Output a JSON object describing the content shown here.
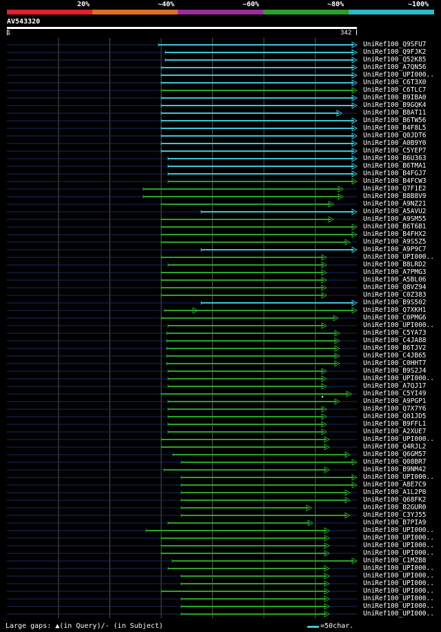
{
  "legend": {
    "percent_labels": [
      "20%",
      "~40%",
      "~60%",
      "~80%",
      "~100%"
    ],
    "colors": [
      "#e0202c",
      "#e07020",
      "#9a2e9a",
      "#2aa02a",
      "#30b8c8"
    ]
  },
  "query": {
    "id": "AV543320",
    "start": "1",
    "end": "342"
  },
  "colors": {
    "cyan": "#3cc8dc",
    "green": "#28a828",
    "grid": "#555555",
    "fade": "#1a2a66"
  },
  "hits": [
    {
      "label": "UniRef100_Q9SFU7",
      "start": 0.4333,
      "end": 1.0,
      "color": "cyan"
    },
    {
      "label": "UniRef100_Q9FJK2",
      "start": 0.4528,
      "end": 1.0,
      "color": "cyan"
    },
    {
      "label": "UniRef100_Q52K85",
      "start": 0.4528,
      "end": 1.0,
      "color": "cyan"
    },
    {
      "label": "UniRef100_A7QN56",
      "start": 0.4409,
      "end": 1.0,
      "color": "cyan"
    },
    {
      "label": "UniRef100_UPI000..",
      "start": 0.4409,
      "end": 1.0,
      "color": "cyan"
    },
    {
      "label": "UniRef100_C6T3X0",
      "start": 0.4409,
      "end": 1.0,
      "color": "cyan"
    },
    {
      "label": "UniRef100_C6TLC7",
      "start": 0.4409,
      "end": 1.0,
      "color": "green"
    },
    {
      "label": "UniRef100_B9IBA0",
      "start": 0.4409,
      "end": 1.0,
      "color": "cyan"
    },
    {
      "label": "UniRef100_B9GQK4",
      "start": 0.4409,
      "end": 1.0,
      "color": "cyan"
    },
    {
      "label": "UniRef100_B8AT11",
      "start": 0.4409,
      "end": 0.9567,
      "color": "cyan"
    },
    {
      "label": "UniRef100_B6TW56",
      "start": 0.4409,
      "end": 1.0,
      "color": "cyan"
    },
    {
      "label": "UniRef100_B4F8L5",
      "start": 0.4409,
      "end": 1.0,
      "color": "cyan"
    },
    {
      "label": "UniRef100_Q0JDT6",
      "start": 0.4409,
      "end": 1.0,
      "color": "cyan"
    },
    {
      "label": "UniRef100_A0B9Y0",
      "start": 0.4409,
      "end": 1.0,
      "color": "cyan"
    },
    {
      "label": "UniRef100_C5YEP7",
      "start": 0.4409,
      "end": 1.0,
      "color": "cyan"
    },
    {
      "label": "UniRef100_B6U363",
      "start": 0.4606,
      "end": 1.0,
      "color": "cyan"
    },
    {
      "label": "UniRef100_B6TMA1",
      "start": 0.4606,
      "end": 1.0,
      "color": "cyan"
    },
    {
      "label": "UniRef100_B4FGJ7",
      "start": 0.4606,
      "end": 1.0,
      "color": "cyan"
    },
    {
      "label": "UniRef100_B4FCW3",
      "start": 0.4606,
      "end": 1.0,
      "color": "green"
    },
    {
      "label": "UniRef100_Q7F1E2",
      "start": 0.3898,
      "end": 0.9606,
      "color": "green"
    },
    {
      "label": "UniRef100_B8B8V9",
      "start": 0.3898,
      "end": 0.9606,
      "color": "green"
    },
    {
      "label": "UniRef100_A9NZ21",
      "start": 0.4409,
      "end": 0.9331,
      "color": "green"
    },
    {
      "label": "UniRef100_A5AVU2",
      "start": 0.5551,
      "end": 1.0,
      "color": "cyan"
    },
    {
      "label": "UniRef100_A9SM55",
      "start": 0.4409,
      "end": 0.9331,
      "color": "green"
    },
    {
      "label": "UniRef100_B6T6B1",
      "start": 0.4409,
      "end": 1.0,
      "color": "green"
    },
    {
      "label": "UniRef100_B4FHX2",
      "start": 0.4409,
      "end": 1.0,
      "color": "green"
    },
    {
      "label": "UniRef100_A9S5Z5",
      "start": 0.4409,
      "end": 0.9803,
      "color": "green"
    },
    {
      "label": "UniRef100_A9P9C7",
      "start": 0.5551,
      "end": 1.0,
      "color": "cyan"
    },
    {
      "label": "UniRef100_UPI000..",
      "start": 0.4409,
      "end": 0.9134,
      "color": "green"
    },
    {
      "label": "UniRef100_B8LRD2",
      "start": 0.4606,
      "end": 0.9134,
      "color": "green"
    },
    {
      "label": "UniRef100_A7PMG3",
      "start": 0.4409,
      "end": 0.9134,
      "color": "green"
    },
    {
      "label": "UniRef100_A5BL06",
      "start": 0.4409,
      "end": 0.9134,
      "color": "green"
    },
    {
      "label": "UniRef100_Q8VZ94",
      "start": 0.4409,
      "end": 0.9134,
      "color": "green"
    },
    {
      "label": "UniRef100_C0Z383",
      "start": 0.4409,
      "end": 0.9134,
      "color": "green"
    },
    {
      "label": "UniRef100_B9S502",
      "start": 0.5551,
      "end": 1.0,
      "color": "cyan"
    },
    {
      "label": "UniRef100_Q7XKH1",
      "start": 0.4508,
      "end": 1.0,
      "color": "green",
      "gap": 0.5453
    },
    {
      "label": "UniRef100_C0PMG6",
      "start": 0.4409,
      "end": 0.9469,
      "color": "green"
    },
    {
      "label": "UniRef100_UPI000..",
      "start": 0.4606,
      "end": 0.9134,
      "color": "green"
    },
    {
      "label": "UniRef100_C5YA73",
      "start": 0.4567,
      "end": 0.9508,
      "color": "green"
    },
    {
      "label": "UniRef100_C4JA88",
      "start": 0.4567,
      "end": 0.9508,
      "color": "green"
    },
    {
      "label": "UniRef100_B6TJV2",
      "start": 0.4567,
      "end": 0.9508,
      "color": "green"
    },
    {
      "label": "UniRef100_C4JB65",
      "start": 0.4567,
      "end": 0.9508,
      "color": "green"
    },
    {
      "label": "UniRef100_C0HHT7",
      "start": 0.4567,
      "end": 0.9508,
      "color": "green"
    },
    {
      "label": "UniRef100_B9S2J4",
      "start": 0.4606,
      "end": 0.9134,
      "color": "green"
    },
    {
      "label": "UniRef100_UPI000..",
      "start": 0.4606,
      "end": 0.9134,
      "color": "green"
    },
    {
      "label": "UniRef100_A7QJ17",
      "start": 0.4606,
      "end": 0.9134,
      "color": "green"
    },
    {
      "label": "UniRef100_C5YI49",
      "start": 0.4409,
      "end": 0.9843,
      "color": "green",
      "query_gap": 0.9016
    },
    {
      "label": "UniRef100_A9PGP1",
      "start": 0.4606,
      "end": 0.9508,
      "color": "green"
    },
    {
      "label": "UniRef100_Q7X7Y6",
      "start": 0.4606,
      "end": 0.9134,
      "color": "green"
    },
    {
      "label": "UniRef100_Q01JD5",
      "start": 0.4606,
      "end": 0.9134,
      "color": "green"
    },
    {
      "label": "UniRef100_B9FFL1",
      "start": 0.4606,
      "end": 0.9134,
      "color": "green"
    },
    {
      "label": "UniRef100_A2XUE7",
      "start": 0.4606,
      "end": 0.9134,
      "color": "green"
    },
    {
      "label": "UniRef100_UPI000..",
      "start": 0.4409,
      "end": 0.9213,
      "color": "green"
    },
    {
      "label": "UniRef100_Q4RJL2",
      "start": 0.4409,
      "end": 0.9213,
      "color": "green"
    },
    {
      "label": "UniRef100_Q6GM57",
      "start": 0.4744,
      "end": 0.9803,
      "color": "green"
    },
    {
      "label": "UniRef100_Q08BR7",
      "start": 0.498,
      "end": 1.0,
      "color": "green"
    },
    {
      "label": "UniRef100_B9NM42",
      "start": 0.4488,
      "end": 0.9213,
      "color": "green"
    },
    {
      "label": "UniRef100_UPI000..",
      "start": 0.498,
      "end": 1.0,
      "color": "green"
    },
    {
      "label": "UniRef100_A8E7C9",
      "start": 0.498,
      "end": 1.0,
      "color": "green"
    },
    {
      "label": "UniRef100_A1L2P0",
      "start": 0.498,
      "end": 0.9803,
      "color": "green"
    },
    {
      "label": "UniRef100_Q68FK2",
      "start": 0.498,
      "end": 0.9803,
      "color": "green"
    },
    {
      "label": "UniRef100_B2GUR0",
      "start": 0.498,
      "end": 0.8701,
      "color": "green"
    },
    {
      "label": "UniRef100_C3YJ55",
      "start": 0.498,
      "end": 0.9803,
      "color": "green"
    },
    {
      "label": "UniRef100_B7PIA9",
      "start": 0.4606,
      "end": 0.874,
      "color": "green"
    },
    {
      "label": "UniRef100_UPI000..",
      "start": 0.3976,
      "end": 0.9213,
      "color": "green"
    },
    {
      "label": "UniRef100_UPI000..",
      "start": 0.4409,
      "end": 0.9213,
      "color": "green"
    },
    {
      "label": "UniRef100_UPI000..",
      "start": 0.4409,
      "end": 0.9213,
      "color": "green"
    },
    {
      "label": "UniRef100_UPI000..",
      "start": 0.4409,
      "end": 0.9213,
      "color": "green"
    },
    {
      "label": "UniRef100_C1MZB8",
      "start": 0.4724,
      "end": 1.0,
      "color": "green"
    },
    {
      "label": "UniRef100_UPI000..",
      "start": 0.4606,
      "end": 0.9213,
      "color": "green"
    },
    {
      "label": "UniRef100_UPI000..",
      "start": 0.498,
      "end": 0.9213,
      "color": "green"
    },
    {
      "label": "UniRef100_UPI000..",
      "start": 0.498,
      "end": 0.9213,
      "color": "green"
    },
    {
      "label": "UniRef100_UPI000..",
      "start": 0.4409,
      "end": 0.9213,
      "color": "green"
    },
    {
      "label": "UniRef100_UPI000..",
      "start": 0.498,
      "end": 0.9213,
      "color": "green"
    },
    {
      "label": "UniRef100_UPI000..",
      "start": 0.498,
      "end": 0.9213,
      "color": "green"
    },
    {
      "label": "UniRef100_UPI000..",
      "start": 0.498,
      "end": 0.9213,
      "color": "green"
    }
  ],
  "footer": {
    "gaps_text": "Large gaps: ▲(in Query)/- (in Subject)",
    "scale_text": "=50char."
  }
}
